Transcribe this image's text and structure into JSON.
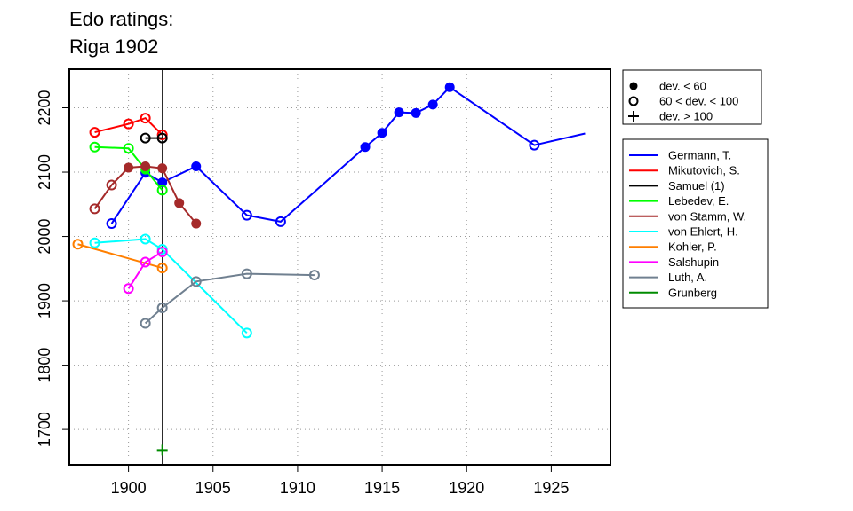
{
  "chart_data": {
    "type": "line",
    "title": "Edo ratings:",
    "subtitle": "Riga 1902",
    "xlabel": "",
    "ylabel": "",
    "xlim": [
      1896.5,
      1928.5
    ],
    "ylim": [
      1645,
      2260
    ],
    "x_ticks": [
      1900,
      1905,
      1910,
      1915,
      1920,
      1925
    ],
    "y_ticks": [
      1700,
      1800,
      1900,
      2000,
      2100,
      2200
    ],
    "grid": true,
    "reference_line_x": 1902,
    "marker_legend": [
      {
        "symbol": "filled-circle",
        "label": "dev. < 60"
      },
      {
        "symbol": "open-circle",
        "label": "60 < dev. < 100"
      },
      {
        "symbol": "plus",
        "label": "dev. > 100"
      }
    ],
    "series": [
      {
        "name": "Germann, T.",
        "color": "#0000ff",
        "points": [
          {
            "x": 1899,
            "y": 2020,
            "m": "open"
          },
          {
            "x": 1901,
            "y": 2099,
            "m": "filled"
          },
          {
            "x": 1902,
            "y": 2084,
            "m": "filled"
          },
          {
            "x": 1904,
            "y": 2109,
            "m": "filled"
          },
          {
            "x": 1907,
            "y": 2033,
            "m": "open"
          },
          {
            "x": 1909,
            "y": 2023,
            "m": "open"
          },
          {
            "x": 1914,
            "y": 2139,
            "m": "filled"
          },
          {
            "x": 1915,
            "y": 2161,
            "m": "filled"
          },
          {
            "x": 1916,
            "y": 2193,
            "m": "filled"
          },
          {
            "x": 1917,
            "y": 2192,
            "m": "filled"
          },
          {
            "x": 1918,
            "y": 2205,
            "m": "filled"
          },
          {
            "x": 1919,
            "y": 2232,
            "m": "filled"
          },
          {
            "x": 1924,
            "y": 2142,
            "m": "open"
          },
          {
            "x": 1927,
            "y": 2160,
            "m": "none"
          }
        ]
      },
      {
        "name": "Mikutovich, S.",
        "color": "#ff0000",
        "points": [
          {
            "x": 1898,
            "y": 2162,
            "m": "open"
          },
          {
            "x": 1900,
            "y": 2175,
            "m": "open"
          },
          {
            "x": 1901,
            "y": 2184,
            "m": "open"
          },
          {
            "x": 1902,
            "y": 2158,
            "m": "open"
          }
        ]
      },
      {
        "name": "Samuel (1)",
        "color": "#000000",
        "points": [
          {
            "x": 1901,
            "y": 2153,
            "m": "open"
          },
          {
            "x": 1902,
            "y": 2153,
            "m": "open"
          }
        ]
      },
      {
        "name": "Lebedev, E.",
        "color": "#00ff00",
        "points": [
          {
            "x": 1898,
            "y": 2139,
            "m": "open"
          },
          {
            "x": 1900,
            "y": 2137,
            "m": "open"
          },
          {
            "x": 1901,
            "y": 2104,
            "m": "filled"
          },
          {
            "x": 1902,
            "y": 2072,
            "m": "open"
          }
        ]
      },
      {
        "name": "von Stamm, W.",
        "color": "#a52a2a",
        "points": [
          {
            "x": 1898,
            "y": 2043,
            "m": "open"
          },
          {
            "x": 1899,
            "y": 2080,
            "m": "open"
          },
          {
            "x": 1900,
            "y": 2107,
            "m": "filled"
          },
          {
            "x": 1901,
            "y": 2109,
            "m": "filled"
          },
          {
            "x": 1902,
            "y": 2106,
            "m": "filled"
          },
          {
            "x": 1903,
            "y": 2052,
            "m": "filled"
          },
          {
            "x": 1904,
            "y": 2020,
            "m": "filled"
          }
        ]
      },
      {
        "name": "von Ehlert, H.",
        "color": "#00ffff",
        "points": [
          {
            "x": 1898,
            "y": 1990,
            "m": "open"
          },
          {
            "x": 1901,
            "y": 1996,
            "m": "open"
          },
          {
            "x": 1902,
            "y": 1980,
            "m": "open"
          },
          {
            "x": 1907,
            "y": 1850,
            "m": "open"
          }
        ]
      },
      {
        "name": "Kohler, P.",
        "color": "#ff7f00",
        "points": [
          {
            "x": 1897,
            "y": 1988,
            "m": "open"
          },
          {
            "x": 1902,
            "y": 1951,
            "m": "open"
          }
        ]
      },
      {
        "name": "Salshupin",
        "color": "#ff00ff",
        "points": [
          {
            "x": 1900,
            "y": 1919,
            "m": "open"
          },
          {
            "x": 1901,
            "y": 1960,
            "m": "open"
          },
          {
            "x": 1902,
            "y": 1976,
            "m": "open"
          }
        ]
      },
      {
        "name": "Luth, A.",
        "color": "#708090",
        "points": [
          {
            "x": 1901,
            "y": 1865,
            "m": "open"
          },
          {
            "x": 1902,
            "y": 1889,
            "m": "open"
          },
          {
            "x": 1904,
            "y": 1930,
            "m": "open"
          },
          {
            "x": 1907,
            "y": 1942,
            "m": "open"
          },
          {
            "x": 1911,
            "y": 1940,
            "m": "open"
          }
        ]
      },
      {
        "name": "Grunberg",
        "color": "#008b00",
        "points": [
          {
            "x": 1902,
            "y": 1668,
            "m": "plus"
          }
        ]
      }
    ]
  }
}
